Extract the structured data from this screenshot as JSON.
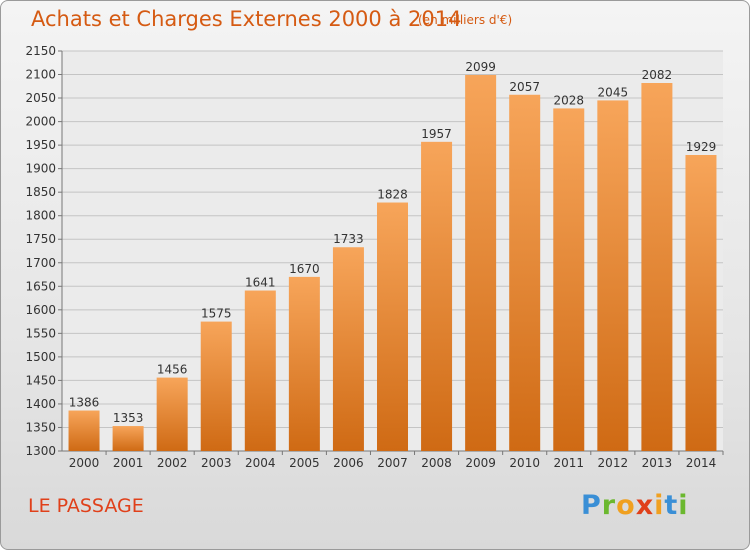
{
  "title": "Achats et Charges Externes 2000 à 2014",
  "subtitle": "(en milliers d'€)",
  "commune": "LE PASSAGE",
  "logo": {
    "letters": [
      "P",
      "r",
      "o",
      "x",
      "i",
      "t",
      "i"
    ],
    "colors": [
      "#3a8fd6",
      "#6bb82f",
      "#f0a020",
      "#e0401a",
      "#f0a020",
      "#3a8fd6",
      "#6bb82f"
    ]
  },
  "colors": {
    "bar_top": "#f7a55a",
    "bar_bottom": "#cf6a14",
    "title": "#d55a12"
  },
  "chart_data": {
    "type": "bar",
    "title": "Achats et Charges Externes 2000 à 2014",
    "subtitle": "(en milliers d'€)",
    "xlabel": "",
    "ylabel": "",
    "categories": [
      "2000",
      "2001",
      "2002",
      "2003",
      "2004",
      "2005",
      "2006",
      "2007",
      "2008",
      "2009",
      "2010",
      "2011",
      "2012",
      "2013",
      "2014"
    ],
    "values": [
      1386,
      1353,
      1456,
      1575,
      1641,
      1670,
      1733,
      1828,
      1957,
      2099,
      2057,
      2028,
      2045,
      2082,
      1929
    ],
    "ylim": [
      1300,
      2150
    ],
    "yticks": [
      1300,
      1350,
      1400,
      1450,
      1500,
      1550,
      1600,
      1650,
      1700,
      1750,
      1800,
      1850,
      1900,
      1950,
      2000,
      2050,
      2100,
      2150
    ],
    "grid": true,
    "legend": "none"
  }
}
